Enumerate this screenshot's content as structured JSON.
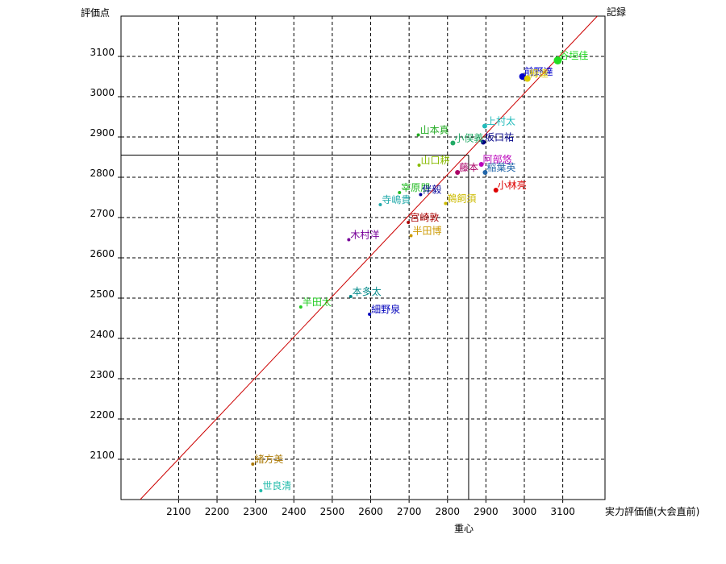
{
  "chart_data": {
    "type": "scatter",
    "title": "",
    "ylabel": "評価点",
    "y2label": "記録",
    "xlabel": "実力評価値(大会直前)",
    "xsublabel": "重心",
    "xlim": [
      1950,
      3210
    ],
    "ylim": [
      2000,
      3200
    ],
    "xticks": [
      2100,
      2200,
      2300,
      2400,
      2500,
      2600,
      2700,
      2800,
      2900,
      3000,
      3100
    ],
    "yticks": [
      2100,
      2200,
      2300,
      2400,
      2500,
      2600,
      2700,
      2800,
      2900,
      3000,
      3100
    ],
    "grid": true,
    "diagonal": {
      "from": [
        2000,
        2000
      ],
      "to": [
        3190,
        3200
      ],
      "color": "#cc0000"
    },
    "centroid": {
      "x": 2855,
      "y": 2855
    },
    "points": [
      {
        "label": "谷垣佳",
        "x": 3087,
        "y": 3090,
        "color": "#22dd22",
        "size": 5
      },
      {
        "label": "前野達",
        "x": 2995,
        "y": 3050,
        "color": "#0000cc",
        "size": 4
      },
      {
        "label": "栂達",
        "x": 3008,
        "y": 3045,
        "color": "#ddcc00",
        "size": 4
      },
      {
        "label": "上村太",
        "x": 2897,
        "y": 2927,
        "color": "#22bbbb",
        "size": 3
      },
      {
        "label": "坂口祐",
        "x": 2893,
        "y": 2887,
        "color": "#000088",
        "size": 3
      },
      {
        "label": "小俣義",
        "x": 2814,
        "y": 2885,
        "color": "#22aa66",
        "size": 3
      },
      {
        "label": "山本真",
        "x": 2724,
        "y": 2905,
        "color": "#22aa22",
        "size": 2
      },
      {
        "label": "阿部悠",
        "x": 2888,
        "y": 2832,
        "color": "#bb00bb",
        "size": 3
      },
      {
        "label": "稲葉英",
        "x": 2898,
        "y": 2812,
        "color": "#2266aa",
        "size": 3
      },
      {
        "label": "藤本",
        "x": 2826,
        "y": 2812,
        "color": "#aa0066",
        "size": 3
      },
      {
        "label": "山口耕",
        "x": 2726,
        "y": 2830,
        "color": "#88bb00",
        "size": 2
      },
      {
        "label": "小林亮",
        "x": 2926,
        "y": 2768,
        "color": "#dd0000",
        "size": 3
      },
      {
        "label": "宰原朋",
        "x": 2675,
        "y": 2762,
        "color": "#22bb22",
        "size": 2
      },
      {
        "label": "伴毅",
        "x": 2730,
        "y": 2757,
        "color": "#000099",
        "size": 2
      },
      {
        "label": "寺嶋貴",
        "x": 2625,
        "y": 2732,
        "color": "#22aaaa",
        "size": 2
      },
      {
        "label": "鵜飼須",
        "x": 2795,
        "y": 2735,
        "color": "#ccbb00",
        "size": 2
      },
      {
        "label": "宮崎敦",
        "x": 2698,
        "y": 2688,
        "color": "#aa0000",
        "size": 2
      },
      {
        "label": "半田博",
        "x": 2705,
        "y": 2655,
        "color": "#cc9900",
        "size": 2
      },
      {
        "label": "木村洋",
        "x": 2543,
        "y": 2645,
        "color": "#770099",
        "size": 2
      },
      {
        "label": "本多太",
        "x": 2548,
        "y": 2504,
        "color": "#008888",
        "size": 2
      },
      {
        "label": "細野泉",
        "x": 2597,
        "y": 2460,
        "color": "#0000bb",
        "size": 2
      },
      {
        "label": "半田太",
        "x": 2418,
        "y": 2478,
        "color": "#22cc22",
        "size": 2
      },
      {
        "label": "緒方美",
        "x": 2293,
        "y": 2088,
        "color": "#aa7700",
        "size": 2
      },
      {
        "label": "世良清",
        "x": 2314,
        "y": 2022,
        "color": "#22bbaa",
        "size": 2
      }
    ]
  }
}
